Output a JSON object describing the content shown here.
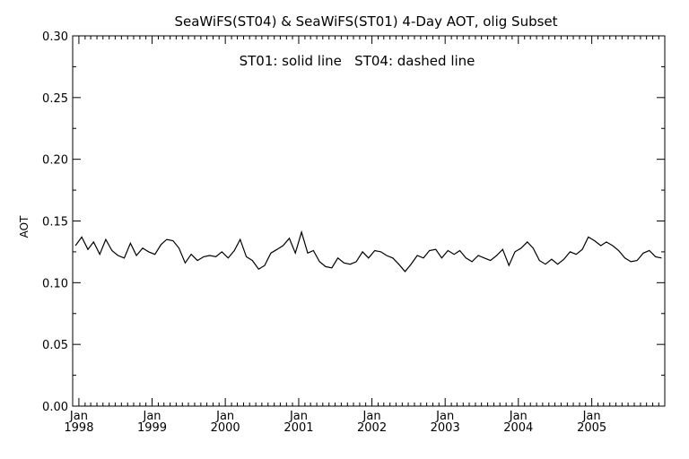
{
  "chart_data": {
    "type": "line",
    "title": "SeaWiFS(ST04) & SeaWiFS(ST01) 4-Day AOT, olig Subset",
    "annotation": "ST01: solid line   ST04: dashed line",
    "ylabel": "AOT",
    "xlabel": "",
    "ylim": [
      0.0,
      0.3
    ],
    "xlim": [
      "1997-12-01",
      "2005-12-31"
    ],
    "yticks": [
      "0.00",
      "0.05",
      "0.10",
      "0.15",
      "0.20",
      "0.25",
      "0.30"
    ],
    "xticks": [
      {
        "month": "Jan",
        "year": "1998"
      },
      {
        "month": "Jan",
        "year": "1999"
      },
      {
        "month": "Jan",
        "year": "2000"
      },
      {
        "month": "Jan",
        "year": "2001"
      },
      {
        "month": "Jan",
        "year": "2002"
      },
      {
        "month": "Jan",
        "year": "2003"
      },
      {
        "month": "Jan",
        "year": "2004"
      },
      {
        "month": "Jan",
        "year": "2005"
      }
    ],
    "grid": false,
    "legend": "none",
    "series": [
      {
        "x": [
          "1997-12",
          "1998-01",
          "1998-02",
          "1998-03",
          "1998-04",
          "1998-05",
          "1998-06",
          "1998-07",
          "1998-08",
          "1998-09",
          "1998-10",
          "1998-11",
          "1998-12",
          "1999-01",
          "1999-02",
          "1999-03",
          "1999-04",
          "1999-05",
          "1999-06",
          "1999-07",
          "1999-08",
          "1999-09",
          "1999-10",
          "1999-11",
          "1999-12",
          "2000-01",
          "2000-02",
          "2000-03",
          "2000-04",
          "2000-05",
          "2000-06",
          "2000-07",
          "2000-08",
          "2000-09",
          "2000-10",
          "2000-11",
          "2000-12",
          "2001-01",
          "2001-02",
          "2001-03",
          "2001-04",
          "2001-05",
          "2001-06",
          "2001-07",
          "2001-08",
          "2001-09",
          "2001-10",
          "2001-11",
          "2001-12",
          "2002-01",
          "2002-02",
          "2002-03",
          "2002-04",
          "2002-05",
          "2002-06",
          "2002-07",
          "2002-08",
          "2002-09",
          "2002-10",
          "2002-11",
          "2002-12",
          "2003-01",
          "2003-02",
          "2003-03",
          "2003-04",
          "2003-05",
          "2003-06",
          "2003-07",
          "2003-08",
          "2003-09",
          "2003-10",
          "2003-11",
          "2003-12",
          "2004-01",
          "2004-02",
          "2004-03",
          "2004-04",
          "2004-05",
          "2004-06",
          "2004-07",
          "2004-08",
          "2004-09",
          "2004-10",
          "2004-11",
          "2004-12",
          "2005-01",
          "2005-02",
          "2005-03",
          "2005-04",
          "2005-05",
          "2005-06",
          "2005-07",
          "2005-08",
          "2005-09",
          "2005-10",
          "2005-11",
          "2005-12"
        ],
        "y": [
          0.13,
          0.137,
          0.127,
          0.133,
          0.123,
          0.135,
          0.126,
          0.122,
          0.12,
          0.132,
          0.122,
          0.128,
          0.125,
          0.123,
          0.131,
          0.135,
          0.134,
          0.128,
          0.116,
          0.123,
          0.118,
          0.121,
          0.122,
          0.121,
          0.125,
          0.12,
          0.126,
          0.135,
          0.121,
          0.118,
          0.111,
          0.114,
          0.124,
          0.127,
          0.13,
          0.136,
          0.124,
          0.141,
          0.124,
          0.126,
          0.117,
          0.113,
          0.112,
          0.12,
          0.116,
          0.115,
          0.117,
          0.125,
          0.12,
          0.126,
          0.125,
          0.122,
          0.12,
          0.115,
          0.109,
          0.115,
          0.122,
          0.12,
          0.126,
          0.127,
          0.12,
          0.126,
          0.123,
          0.126,
          0.12,
          0.117,
          0.122,
          0.12,
          0.118,
          0.122,
          0.127,
          0.114,
          0.125,
          0.128,
          0.133,
          0.128,
          0.118,
          0.115,
          0.119,
          0.115,
          0.119,
          0.125,
          0.123,
          0.127,
          0.137,
          0.134,
          0.13,
          0.133,
          0.13,
          0.126,
          0.12,
          0.117,
          0.118,
          0.124,
          0.126,
          0.121,
          0.12
        ]
      }
    ]
  }
}
